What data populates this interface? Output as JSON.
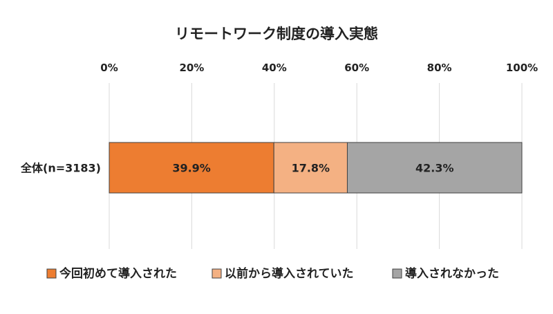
{
  "chart_data": {
    "type": "bar",
    "orientation": "horizontal",
    "stacked": true,
    "title": "リモートワーク制度の導入実態",
    "categories": [
      "全体(n=3183)"
    ],
    "series": [
      {
        "name": "今回初めて導入された",
        "values": [
          39.9
        ],
        "label": "39.9%",
        "color": "#ED7D31"
      },
      {
        "name": "以前から導入されていた",
        "values": [
          17.8
        ],
        "label": "17.8%",
        "color": "#F4B183"
      },
      {
        "name": "導入されなかった",
        "values": [
          42.3
        ],
        "label": "42.3%",
        "color": "#A5A5A5"
      }
    ],
    "xlim": [
      0,
      100
    ],
    "xticks": [
      "0%",
      "20%",
      "40%",
      "60%",
      "80%",
      "100%"
    ],
    "xtick_values": [
      0,
      20,
      40,
      60,
      80,
      100
    ],
    "x_axis_position": "top",
    "grid": true,
    "legend_position": "bottom"
  }
}
